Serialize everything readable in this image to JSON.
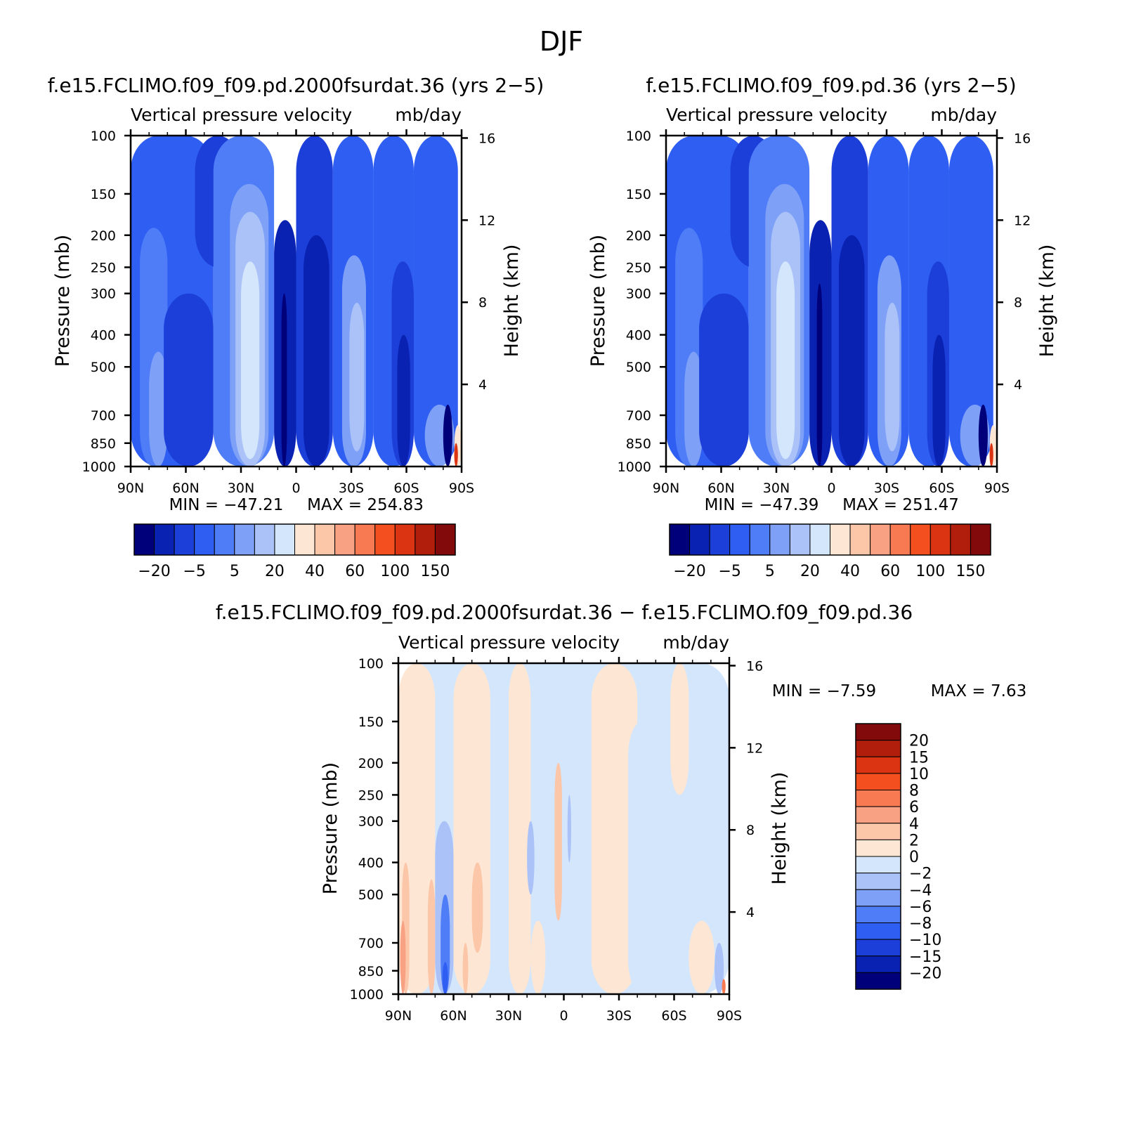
{
  "figure": {
    "title": "DJF"
  },
  "colors": {
    "abs_scale": [
      "#00007a",
      "#0a22b2",
      "#1c3fd9",
      "#2f5ef2",
      "#4f7df7",
      "#7ea1f7",
      "#aac2f8",
      "#d3e6fc",
      "#fde7d4",
      "#fcc6a8",
      "#f9a283",
      "#f87a52",
      "#f4501f",
      "#db3412",
      "#b21e0c",
      "#820a0a"
    ],
    "diff_scale": [
      "#00007a",
      "#0a22b2",
      "#1c3fd9",
      "#2f5ef2",
      "#4f7df7",
      "#7ea1f7",
      "#aac2f8",
      "#d3e6fc",
      "#fde7d4",
      "#fcc6a8",
      "#f9a283",
      "#f87a52",
      "#f4501f",
      "#db3412",
      "#b21e0c",
      "#820a0a"
    ]
  },
  "chart_data": [
    {
      "type": "heatmap",
      "title": "f.e15.FCLIMO.f09_f09.pd.2000fsurdat.36 (yrs 2−5)",
      "subtitle_left": "Vertical pressure velocity",
      "subtitle_right": "mb/day",
      "ylabel": "Pressure (mb)",
      "ylabel_right": "Height (km)",
      "x_ticks": [
        "90N",
        "60N",
        "30N",
        "0",
        "30S",
        "60S",
        "90S"
      ],
      "y_ticks": [
        "100",
        "150",
        "200",
        "250",
        "300",
        "400",
        "500",
        "700",
        "850",
        "1000"
      ],
      "y_right_ticks": [
        "16",
        "12",
        "8",
        "4"
      ],
      "xlim": [
        90,
        -90
      ],
      "ylim": [
        1000,
        100
      ],
      "ylog": true,
      "min_label": "MIN = −47.21",
      "max_label": "MAX = 254.83",
      "min": -47.21,
      "max": 254.83,
      "colorbar_labels": [
        "−20",
        "−5",
        "5",
        "20",
        "40",
        "60",
        "100",
        "150"
      ],
      "regions": [
        {
          "lat": [
            90,
            45
          ],
          "p": [
            100,
            1000
          ],
          "level": 3
        },
        {
          "lat": [
            85,
            70
          ],
          "p": [
            190,
            1000
          ],
          "level": 4
        },
        {
          "lat": [
            80,
            70
          ],
          "p": [
            450,
            1000
          ],
          "level": 5
        },
        {
          "lat": [
            72,
            45
          ],
          "p": [
            300,
            1000
          ],
          "level": 2
        },
        {
          "lat": [
            55,
            30
          ],
          "p": [
            80,
            250
          ],
          "level": 2
        },
        {
          "lat": [
            45,
            12
          ],
          "p": [
            100,
            1000
          ],
          "level": 4
        },
        {
          "lat": [
            36,
            15
          ],
          "p": [
            140,
            1000
          ],
          "level": 5
        },
        {
          "lat": [
            33,
            17
          ],
          "p": [
            170,
            1000
          ],
          "level": 6
        },
        {
          "lat": [
            30,
            20
          ],
          "p": [
            240,
            950
          ],
          "level": 7
        },
        {
          "lat": [
            12,
            0
          ],
          "p": [
            180,
            1000
          ],
          "level": 1
        },
        {
          "lat": [
            8,
            5
          ],
          "p": [
            300,
            1000
          ],
          "level": 0
        },
        {
          "lat": [
            0,
            -20
          ],
          "p": [
            100,
            1000
          ],
          "level": 2
        },
        {
          "lat": [
            -4,
            -18
          ],
          "p": [
            200,
            1000
          ],
          "level": 1
        },
        {
          "lat": [
            -20,
            -42
          ],
          "p": [
            100,
            1000
          ],
          "level": 3
        },
        {
          "lat": [
            -25,
            -38
          ],
          "p": [
            230,
            1000
          ],
          "level": 5
        },
        {
          "lat": [
            -29,
            -37
          ],
          "p": [
            320,
            900
          ],
          "level": 6
        },
        {
          "lat": [
            -42,
            -64
          ],
          "p": [
            100,
            1000
          ],
          "level": 3
        },
        {
          "lat": [
            -52,
            -64
          ],
          "p": [
            240,
            1000
          ],
          "level": 2
        },
        {
          "lat": [
            -55,
            -62
          ],
          "p": [
            400,
            1000
          ],
          "level": 1
        },
        {
          "lat": [
            -64,
            -88
          ],
          "p": [
            100,
            1000
          ],
          "level": 3
        },
        {
          "lat": [
            -70,
            -86
          ],
          "p": [
            650,
            1000
          ],
          "level": 5
        },
        {
          "lat": [
            -80,
            -85
          ],
          "p": [
            650,
            1000
          ],
          "level": 0
        },
        {
          "lat": [
            -86,
            -90
          ],
          "p": [
            750,
            1000
          ],
          "level": 8
        },
        {
          "lat": [
            -86,
            -88
          ],
          "p": [
            850,
            1000
          ],
          "level": 13
        }
      ]
    },
    {
      "type": "heatmap",
      "title": "f.e15.FCLIMO.f09_f09.pd.36 (yrs 2−5)",
      "subtitle_left": "Vertical pressure velocity",
      "subtitle_right": "mb/day",
      "ylabel": "Pressure (mb)",
      "ylabel_right": "Height (km)",
      "x_ticks": [
        "90N",
        "60N",
        "30N",
        "0",
        "30S",
        "60S",
        "90S"
      ],
      "y_ticks": [
        "100",
        "150",
        "200",
        "250",
        "300",
        "400",
        "500",
        "700",
        "850",
        "1000"
      ],
      "y_right_ticks": [
        "16",
        "12",
        "8",
        "4"
      ],
      "xlim": [
        90,
        -90
      ],
      "ylim": [
        1000,
        100
      ],
      "ylog": true,
      "min_label": "MIN = −47.39",
      "max_label": "MAX = 251.47",
      "min": -47.39,
      "max": 251.47,
      "colorbar_labels": [
        "−20",
        "−5",
        "5",
        "20",
        "40",
        "60",
        "100",
        "150"
      ],
      "regions": [
        {
          "lat": [
            90,
            45
          ],
          "p": [
            100,
            1000
          ],
          "level": 3
        },
        {
          "lat": [
            85,
            70
          ],
          "p": [
            190,
            1000
          ],
          "level": 4
        },
        {
          "lat": [
            80,
            70
          ],
          "p": [
            450,
            1000
          ],
          "level": 5
        },
        {
          "lat": [
            72,
            45
          ],
          "p": [
            300,
            1000
          ],
          "level": 2
        },
        {
          "lat": [
            55,
            30
          ],
          "p": [
            80,
            250
          ],
          "level": 2
        },
        {
          "lat": [
            45,
            12
          ],
          "p": [
            100,
            1000
          ],
          "level": 4
        },
        {
          "lat": [
            36,
            15
          ],
          "p": [
            140,
            1000
          ],
          "level": 5
        },
        {
          "lat": [
            33,
            17
          ],
          "p": [
            170,
            1000
          ],
          "level": 6
        },
        {
          "lat": [
            30,
            20
          ],
          "p": [
            240,
            950
          ],
          "level": 7
        },
        {
          "lat": [
            12,
            0
          ],
          "p": [
            180,
            1000
          ],
          "level": 1
        },
        {
          "lat": [
            8,
            5
          ],
          "p": [
            280,
            1000
          ],
          "level": 0
        },
        {
          "lat": [
            0,
            -20
          ],
          "p": [
            100,
            1000
          ],
          "level": 2
        },
        {
          "lat": [
            -4,
            -18
          ],
          "p": [
            200,
            1000
          ],
          "level": 1
        },
        {
          "lat": [
            -20,
            -42
          ],
          "p": [
            100,
            1000
          ],
          "level": 3
        },
        {
          "lat": [
            -25,
            -38
          ],
          "p": [
            230,
            1000
          ],
          "level": 5
        },
        {
          "lat": [
            -29,
            -37
          ],
          "p": [
            320,
            900
          ],
          "level": 6
        },
        {
          "lat": [
            -42,
            -64
          ],
          "p": [
            100,
            1000
          ],
          "level": 3
        },
        {
          "lat": [
            -52,
            -64
          ],
          "p": [
            240,
            1000
          ],
          "level": 2
        },
        {
          "lat": [
            -55,
            -62
          ],
          "p": [
            400,
            1000
          ],
          "level": 1
        },
        {
          "lat": [
            -64,
            -88
          ],
          "p": [
            100,
            1000
          ],
          "level": 3
        },
        {
          "lat": [
            -70,
            -86
          ],
          "p": [
            650,
            1000
          ],
          "level": 5
        },
        {
          "lat": [
            -80,
            -85
          ],
          "p": [
            650,
            1000
          ],
          "level": 0
        },
        {
          "lat": [
            -86,
            -90
          ],
          "p": [
            750,
            1000
          ],
          "level": 8
        },
        {
          "lat": [
            -86,
            -88
          ],
          "p": [
            850,
            1000
          ],
          "level": 13
        }
      ]
    },
    {
      "type": "heatmap",
      "title": "f.e15.FCLIMO.f09_f09.pd.2000fsurdat.36 − f.e15.FCLIMO.f09_f09.pd.36",
      "subtitle_left": "Vertical pressure velocity",
      "subtitle_right": "mb/day",
      "ylabel": "Pressure (mb)",
      "ylabel_right": "Height (km)",
      "x_ticks": [
        "90N",
        "60N",
        "30N",
        "0",
        "30S",
        "60S",
        "90S"
      ],
      "y_ticks": [
        "100",
        "150",
        "200",
        "250",
        "300",
        "400",
        "500",
        "700",
        "850",
        "1000"
      ],
      "y_right_ticks": [
        "16",
        "12",
        "8",
        "4"
      ],
      "xlim": [
        90,
        -90
      ],
      "ylim": [
        1000,
        100
      ],
      "ylog": true,
      "min_label": "MIN = −7.59",
      "max_label": "MAX = 7.63",
      "min": -7.59,
      "max": 7.63,
      "colorbar_labels": [
        "20",
        "15",
        "10",
        "8",
        "6",
        "4",
        "2",
        "0",
        "−2",
        "−4",
        "−6",
        "−8",
        "−10",
        "−15",
        "−20"
      ],
      "regions": [
        {
          "lat": [
            90,
            -90
          ],
          "p": [
            100,
            1000
          ],
          "level": 7
        },
        {
          "lat": [
            90,
            70
          ],
          "p": [
            100,
            1000
          ],
          "level": 8
        },
        {
          "lat": [
            88,
            84
          ],
          "p": [
            400,
            1000
          ],
          "level": 9
        },
        {
          "lat": [
            89,
            86
          ],
          "p": [
            600,
            1000
          ],
          "level": 10
        },
        {
          "lat": [
            74,
            70
          ],
          "p": [
            450,
            1000
          ],
          "level": 9
        },
        {
          "lat": [
            70,
            60
          ],
          "p": [
            300,
            1000
          ],
          "level": 6
        },
        {
          "lat": [
            67,
            62
          ],
          "p": [
            500,
            1000
          ],
          "level": 4
        },
        {
          "lat": [
            66,
            63
          ],
          "p": [
            800,
            1000
          ],
          "level": 3
        },
        {
          "lat": [
            60,
            40
          ],
          "p": [
            100,
            1000
          ],
          "level": 8
        },
        {
          "lat": [
            55,
            52
          ],
          "p": [
            700,
            1000
          ],
          "level": 9
        },
        {
          "lat": [
            50,
            44
          ],
          "p": [
            400,
            750
          ],
          "level": 9
        },
        {
          "lat": [
            30,
            18
          ],
          "p": [
            100,
            1000
          ],
          "level": 8
        },
        {
          "lat": [
            20,
            16
          ],
          "p": [
            300,
            500
          ],
          "level": 6
        },
        {
          "lat": [
            18,
            10
          ],
          "p": [
            600,
            1000
          ],
          "level": 8
        },
        {
          "lat": [
            5,
            1
          ],
          "p": [
            200,
            600
          ],
          "level": 9
        },
        {
          "lat": [
            -2,
            -4
          ],
          "p": [
            250,
            400
          ],
          "level": 6
        },
        {
          "lat": [
            -15,
            -40
          ],
          "p": [
            100,
            1000
          ],
          "level": 8
        },
        {
          "lat": [
            -35,
            -50
          ],
          "p": [
            150,
            1000
          ],
          "level": 7
        },
        {
          "lat": [
            -58,
            -68
          ],
          "p": [
            100,
            250
          ],
          "level": 8
        },
        {
          "lat": [
            -68,
            -82
          ],
          "p": [
            600,
            1000
          ],
          "level": 8
        },
        {
          "lat": [
            -82,
            -87
          ],
          "p": [
            700,
            1000
          ],
          "level": 6
        },
        {
          "lat": [
            -86,
            -88
          ],
          "p": [
            900,
            1000
          ],
          "level": 11
        }
      ]
    }
  ]
}
